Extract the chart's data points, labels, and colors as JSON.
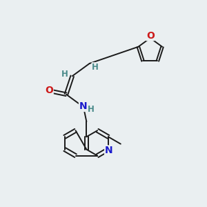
{
  "background_color": "#eaeff1",
  "atom_color_default": "#4a8a8a",
  "atom_color_N": "#1a1acc",
  "atom_color_O": "#cc1a1a",
  "bond_color": "#1a1a1a",
  "font_size_atom": 8.5,
  "figsize": [
    3.0,
    3.0
  ],
  "dpi": 100,
  "xlim": [
    0,
    10
  ],
  "ylim": [
    0,
    10
  ]
}
